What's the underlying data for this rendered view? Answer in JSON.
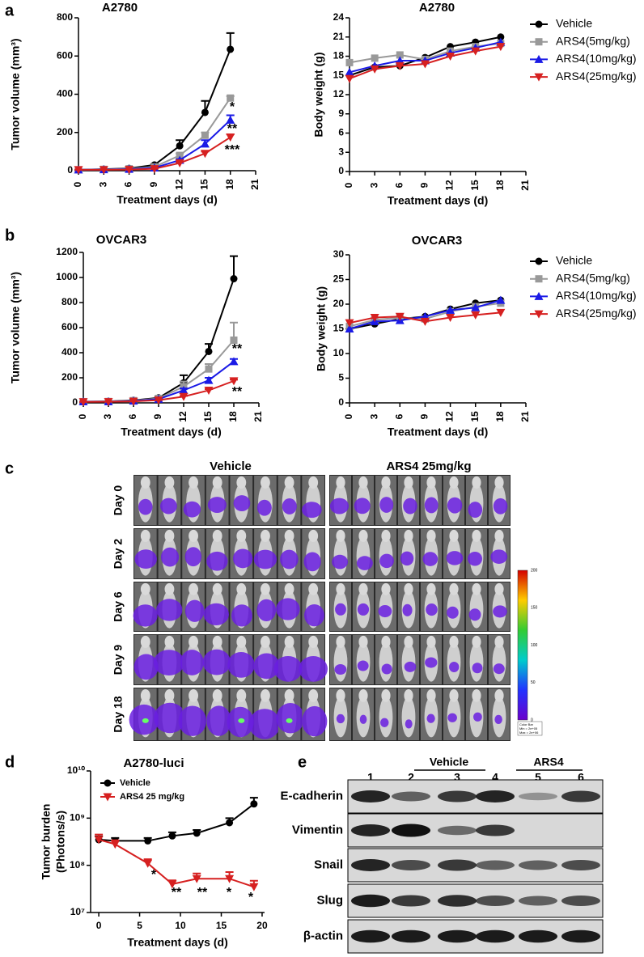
{
  "panel_labels": [
    "a",
    "b",
    "c",
    "d",
    "e"
  ],
  "chart_data": [
    {
      "type": "line",
      "title": "A2780",
      "x_label": "Treatment days (d)",
      "y_label": "Tumor volume (mm³)",
      "x": [
        0,
        3,
        6,
        9,
        12,
        15,
        18
      ],
      "xlim": [
        0,
        21
      ],
      "xticks": [
        0,
        3,
        6,
        9,
        12,
        15,
        18,
        21
      ],
      "ylim": [
        0,
        800
      ],
      "yticks": [
        0,
        200,
        400,
        600,
        800
      ],
      "series": [
        {
          "color": "#000000",
          "marker": "circle",
          "values": [
            5,
            8,
            12,
            30,
            130,
            305,
            635
          ],
          "errors": [
            0,
            0,
            0,
            5,
            30,
            60,
            85
          ]
        },
        {
          "color": "#999999",
          "marker": "square",
          "values": [
            5,
            7,
            10,
            20,
            80,
            185,
            380
          ],
          "errors": [
            0,
            0,
            0,
            0,
            10,
            15,
            10
          ]
        },
        {
          "color": "#1a1ae6",
          "marker": "triangle-up",
          "values": [
            5,
            6,
            8,
            15,
            55,
            140,
            265
          ],
          "errors": [
            0,
            0,
            0,
            0,
            5,
            20,
            25
          ]
        },
        {
          "color": "#d62020",
          "marker": "triangle-down",
          "values": [
            5,
            5,
            6,
            10,
            40,
            90,
            175
          ],
          "errors": [
            0,
            0,
            0,
            0,
            5,
            10,
            15
          ]
        }
      ],
      "annotations": [
        "*",
        "**",
        "***"
      ]
    },
    {
      "type": "line",
      "title": "A2780",
      "x_label": "Treatment days (d)",
      "y_label": "Body weight (g)",
      "x": [
        0,
        3,
        6,
        9,
        12,
        15,
        18
      ],
      "xlim": [
        0,
        21
      ],
      "xticks": [
        0,
        3,
        6,
        9,
        12,
        15,
        18,
        21
      ],
      "ylim": [
        0,
        24
      ],
      "yticks": [
        0,
        3,
        6,
        9,
        12,
        15,
        18,
        21,
        24
      ],
      "legend": "right",
      "series": [
        {
          "name": "Vehicle",
          "color": "#000000",
          "marker": "circle",
          "values": [
            15,
            16.3,
            16.5,
            17.8,
            19.5,
            20.2,
            21
          ]
        },
        {
          "name": "ARS4(5mg/kg)",
          "color": "#999999",
          "marker": "square",
          "values": [
            17,
            17.7,
            18.2,
            17.5,
            18.8,
            19.5,
            20
          ]
        },
        {
          "name": "ARS4(10mg/kg)",
          "color": "#1a1ae6",
          "marker": "triangle-up",
          "values": [
            15.5,
            16.5,
            17.3,
            17.3,
            18.5,
            19.3,
            20.2
          ]
        },
        {
          "name": "ARS4(25mg/kg)",
          "color": "#d62020",
          "marker": "triangle-down",
          "values": [
            14.5,
            16,
            16.5,
            16.8,
            18,
            18.8,
            19.5
          ]
        }
      ]
    },
    {
      "type": "line",
      "title": "OVCAR3",
      "x_label": "Treatment days (d)",
      "y_label": "Tumor volume (mm³)",
      "x": [
        0,
        3,
        6,
        9,
        12,
        15,
        18
      ],
      "xlim": [
        0,
        21
      ],
      "xticks": [
        0,
        3,
        6,
        9,
        12,
        15,
        18,
        21
      ],
      "ylim": [
        0,
        1200
      ],
      "yticks": [
        0,
        200,
        400,
        600,
        800,
        1000,
        1200
      ],
      "series": [
        {
          "color": "#000000",
          "marker": "circle",
          "values": [
            10,
            12,
            20,
            40,
            160,
            410,
            990
          ],
          "errors": [
            0,
            0,
            5,
            10,
            60,
            60,
            180
          ]
        },
        {
          "color": "#999999",
          "marker": "square",
          "values": [
            10,
            11,
            18,
            35,
            130,
            270,
            500
          ],
          "errors": [
            0,
            0,
            0,
            5,
            40,
            40,
            140
          ]
        },
        {
          "color": "#1a1ae6",
          "marker": "triangle-up",
          "values": [
            10,
            10,
            15,
            30,
            100,
            180,
            330
          ],
          "errors": [
            0,
            0,
            0,
            5,
            15,
            20,
            20
          ]
        },
        {
          "color": "#d62020",
          "marker": "triangle-down",
          "values": [
            8,
            9,
            12,
            22,
            50,
            100,
            175
          ],
          "errors": [
            0,
            0,
            0,
            0,
            5,
            10,
            10
          ]
        }
      ],
      "annotations": [
        "**",
        "**"
      ]
    },
    {
      "type": "line",
      "title": "OVCAR3",
      "x_label": "Treatment days (d)",
      "y_label": "Body weight (g)",
      "x": [
        0,
        3,
        6,
        9,
        12,
        15,
        18
      ],
      "xlim": [
        0,
        21
      ],
      "xticks": [
        0,
        3,
        6,
        9,
        12,
        15,
        18,
        21
      ],
      "ylim": [
        0,
        30
      ],
      "yticks": [
        0,
        5,
        10,
        15,
        20,
        25,
        30
      ],
      "legend": "right",
      "series": [
        {
          "name": "Vehicle",
          "color": "#000000",
          "marker": "circle",
          "values": [
            15,
            16,
            17,
            17.5,
            19,
            20.2,
            20.8
          ]
        },
        {
          "name": "ARS4(5mg/kg)",
          "color": "#999999",
          "marker": "square",
          "values": [
            15.5,
            16.8,
            17.3,
            17,
            18.5,
            19.5,
            20.2
          ]
        },
        {
          "name": "ARS4(10mg/kg)",
          "color": "#1a1ae6",
          "marker": "triangle-up",
          "values": [
            15,
            16.5,
            16.7,
            17.5,
            18.8,
            19.3,
            20.8
          ]
        },
        {
          "name": "ARS4(25mg/kg)",
          "color": "#d62020",
          "marker": "triangle-down",
          "values": [
            16.2,
            17.3,
            17.5,
            16.5,
            17.3,
            17.8,
            18.3
          ]
        }
      ]
    },
    {
      "type": "line",
      "title": "A2780-luci",
      "x_label": "Treatment days (d)",
      "y_label": [
        "Tumor burden",
        "(Photons/s)"
      ],
      "x": [
        0,
        2,
        6,
        9,
        12,
        16,
        19
      ],
      "xlim": [
        -1,
        20.3
      ],
      "xticks": [
        0,
        5,
        10,
        15,
        20
      ],
      "y_scale": "log",
      "ylim": [
        10000000,
        10000000000
      ],
      "yticks": [
        {
          "value": 10000000,
          "label": "10⁷"
        },
        {
          "value": 100000000,
          "label": "10⁸"
        },
        {
          "value": 1000000000,
          "label": "10⁹"
        },
        {
          "value": 10000000000,
          "label": "10¹⁰"
        }
      ],
      "legend": "upper left",
      "series": [
        {
          "name": "Vehicle",
          "color": "#000000",
          "marker": "circle",
          "values": [
            350000000,
            330000000,
            330000000,
            420000000,
            480000000,
            800000000,
            2000000000
          ],
          "errors": [
            60000000,
            50000000,
            50000000,
            80000000,
            80000000,
            200000000,
            700000000
          ]
        },
        {
          "name": "ARS4 25 mg/kg",
          "color": "#d62020",
          "marker": "triangle-down",
          "values": [
            350000000,
            280000000,
            110000000,
            40000000,
            52000000,
            52000000,
            35000000
          ],
          "errors": [
            100000000,
            60000000,
            25000000,
            8000000,
            15000000,
            20000000,
            12000000
          ]
        }
      ],
      "annotations": [
        "*",
        "**",
        "**",
        "*",
        "*"
      ]
    }
  ],
  "imaging": {
    "groups": [
      "Vehicle",
      "ARS4 25mg/kg"
    ],
    "days": [
      "Day 0",
      "Day 2",
      "Day 6",
      "Day 9",
      "Day 18"
    ],
    "color_bar": {
      "ticks": [
        200,
        150,
        100,
        50,
        0
      ],
      "caption": [
        "Color Bar",
        "Min = 2e+05",
        "Max = 2e+06"
      ]
    }
  },
  "blot": {
    "groups": [
      "Vehicle",
      "ARS4"
    ],
    "lanes": [
      "1",
      "2",
      "3",
      "4",
      "5",
      "6"
    ],
    "proteins": [
      "E-cadherin",
      "Vimentin",
      "Snail",
      "Slug",
      "β-actin"
    ]
  }
}
